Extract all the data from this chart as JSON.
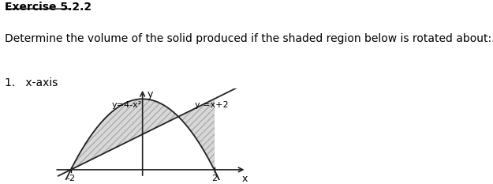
{
  "title": "Exercise 5.2.2",
  "line1": "Determine the volume of the solid produced if the shaded region below is rotated about:.",
  "line2": "1.   x-axis",
  "label_parabola": "y=4-x²",
  "label_line": "y =x+2",
  "x_min": -2.6,
  "x_max": 2.9,
  "y_min": -0.6,
  "y_max": 4.6,
  "tick_left": "-2",
  "tick_right": "2",
  "shade_color": "#b8b8b8",
  "shade_alpha": 0.55,
  "hatch": "////",
  "curve_color": "#222222",
  "axis_color": "#222222",
  "font_size_title": 10,
  "font_size_text": 10,
  "font_size_label": 8
}
